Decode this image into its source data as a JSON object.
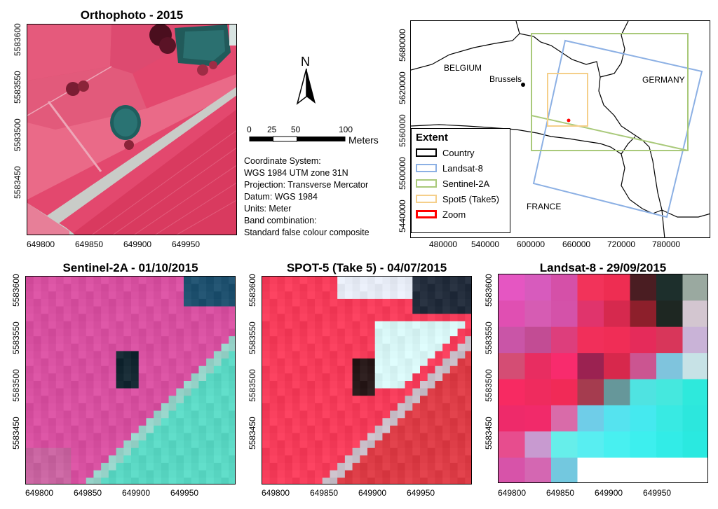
{
  "panels": {
    "ortho": {
      "title": "Orthophoto - 2015"
    },
    "sentinel": {
      "title": "Sentinel-2A - 01/10/2015"
    },
    "spot": {
      "title": "SPOT-5 (Take 5) - 04/07/2015"
    },
    "landsat": {
      "title": "Landsat-8 - 29/09/2015"
    }
  },
  "axes": {
    "x_ticks": [
      "649800",
      "649850",
      "649900",
      "649950"
    ],
    "y_ticks": [
      "5583600",
      "5583550",
      "5583500",
      "5583450"
    ]
  },
  "north": {
    "label": "N"
  },
  "scalebar": {
    "ticks": [
      "0",
      "25",
      "50",
      "100"
    ],
    "unit": "Meters"
  },
  "info": [
    "Coordinate System:",
    "WGS 1984 UTM zone 31N",
    "Projection: Transverse Mercator",
    "Datum: WGS 1984",
    "Units: Meter",
    "Band combination:",
    "Standard false colour composite"
  ],
  "overview": {
    "labels": {
      "belgium": "BELGIUM",
      "brussels": "Brussels",
      "germany": "GERMANY",
      "france": "FRANCE"
    },
    "x_ticks": [
      "480000",
      "540000",
      "600000",
      "660000",
      "720000",
      "780000"
    ],
    "y_ticks": [
      "5680000",
      "5620000",
      "5560000",
      "5500000",
      "5440000"
    ],
    "legend": {
      "title": "Extent",
      "items": [
        {
          "label": "Country",
          "color": "#000000"
        },
        {
          "label": "Landsat-8",
          "color": "#8cb0e4"
        },
        {
          "label": "Sentinel-2A",
          "color": "#a9c97a"
        },
        {
          "label": "Spot5 (Take5)",
          "color": "#f5cf8a"
        },
        {
          "label": "Zoom",
          "color": "#ff0000"
        }
      ]
    }
  }
}
